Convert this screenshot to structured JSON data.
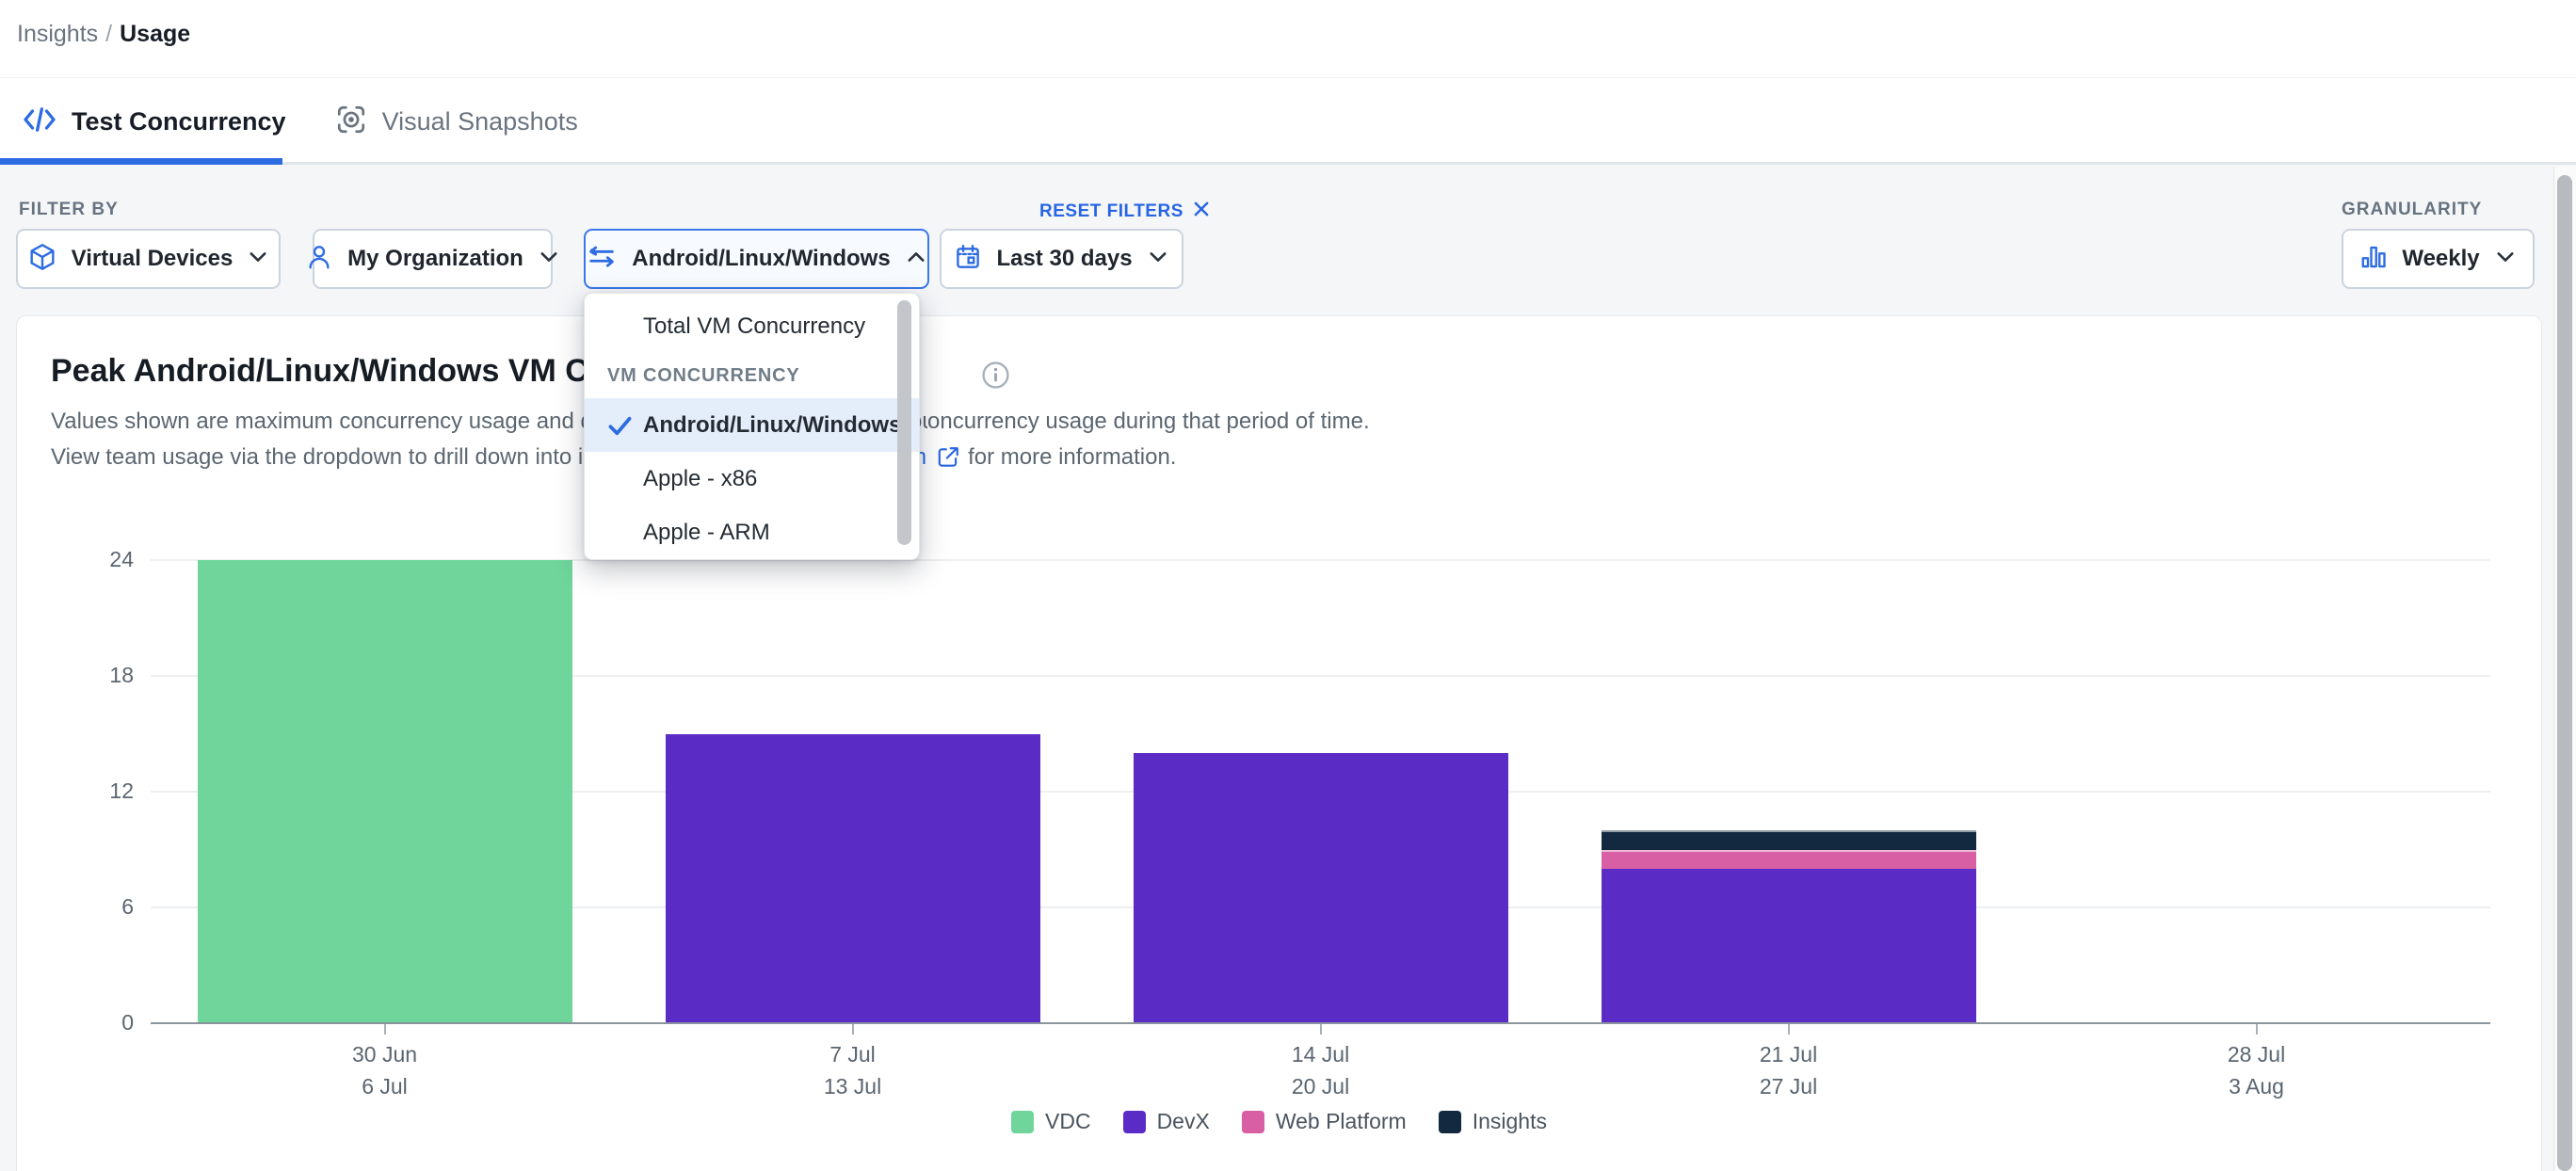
{
  "breadcrumb": {
    "parent": "Insights",
    "separator": "/",
    "current": "Usage"
  },
  "tabs": [
    {
      "label": "Test Concurrency",
      "active": true
    },
    {
      "label": "Visual Snapshots",
      "active": false
    }
  ],
  "filters": {
    "label": "FILTER BY",
    "reset_label": "RESET FILTERS",
    "buttons": [
      {
        "label": "Virtual Devices",
        "icon": "cube-icon",
        "state": "closed"
      },
      {
        "label": "My Organization",
        "icon": "user-icon",
        "state": "closed"
      },
      {
        "label": "Android/Linux/Windows",
        "icon": "swap-icon",
        "state": "open"
      },
      {
        "label": "Last 30 days",
        "icon": "calendar-icon",
        "state": "closed"
      }
    ]
  },
  "granularity": {
    "label": "GRANULARITY",
    "value": "Weekly"
  },
  "dropdown_menu": {
    "items": [
      {
        "label": "Total VM Concurrency",
        "type": "option",
        "selected": false
      },
      {
        "label": "VM CONCURRENCY",
        "type": "section"
      },
      {
        "label": "Android/Linux/Windows",
        "type": "option",
        "selected": true
      },
      {
        "label": "Apple - x86",
        "type": "option",
        "selected": false
      },
      {
        "label": "Apple - ARM",
        "type": "option",
        "selected": false
      }
    ]
  },
  "chart": {
    "title": "Peak Android/Linux/Windows VM Concurrency per Week",
    "description_line1_prefix": "Values shown are maximum concurrency usage and do not necessarily reflect continuous c",
    "description_line1_suffix": "oncurrency usage during that period of time.",
    "description_line2_prefix": "View team usage via the dropdown to drill down into individual team usage. See docume",
    "description_link": "ntation",
    "description_line2_suffix": "for more information."
  },
  "chart_data": {
    "type": "bar",
    "stacked": true,
    "categories": [
      [
        "30 Jun",
        "6 Jul"
      ],
      [
        "7 Jul",
        "13 Jul"
      ],
      [
        "14 Jul",
        "20 Jul"
      ],
      [
        "21 Jul",
        "27 Jul"
      ],
      [
        "28 Jul",
        "3 Aug"
      ]
    ],
    "series": [
      {
        "name": "VDC",
        "color": "#6FD59A",
        "values": [
          24,
          0,
          0,
          0,
          0
        ]
      },
      {
        "name": "DevX",
        "color": "#5B2BC6",
        "values": [
          0,
          15,
          14,
          8,
          0
        ]
      },
      {
        "name": "Web Platform",
        "color": "#D95FA4",
        "values": [
          0,
          0,
          0,
          1,
          0
        ]
      },
      {
        "name": "Insights",
        "color": "#13293F",
        "values": [
          0,
          0,
          0,
          1,
          0
        ]
      }
    ],
    "title": "Peak Android/Linux/Windows VM Concurrency per Week",
    "xlabel": "",
    "ylabel": "",
    "ylim": [
      0,
      24
    ],
    "yticks": [
      0,
      6,
      12,
      18,
      24
    ],
    "grid": true,
    "legend_position": "bottom"
  },
  "colors": {
    "accent": "#2D6BE3",
    "selected_row_bg": "#E4EEFB",
    "page_bg": "#F5F6F8"
  }
}
